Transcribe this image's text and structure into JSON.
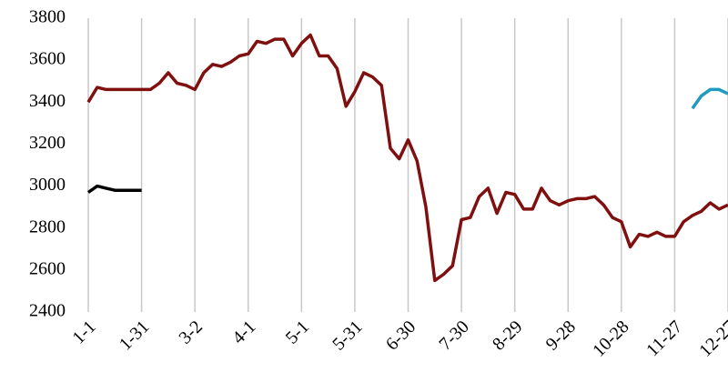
{
  "chart_data": {
    "type": "line",
    "categories": [
      "1-1",
      null,
      null,
      null,
      null,
      null,
      "1-31",
      null,
      null,
      null,
      null,
      null,
      "3-2",
      null,
      null,
      null,
      null,
      null,
      "4-1",
      null,
      null,
      null,
      null,
      null,
      "5-1",
      null,
      null,
      null,
      null,
      null,
      "5-31",
      null,
      null,
      null,
      null,
      null,
      "6-30",
      null,
      null,
      null,
      null,
      null,
      "7-30",
      null,
      null,
      null,
      null,
      null,
      "8-29",
      null,
      null,
      null,
      null,
      null,
      "9-28",
      null,
      null,
      null,
      null,
      null,
      "10-28",
      null,
      null,
      null,
      null,
      null,
      "11-27",
      null,
      null,
      null,
      null,
      null,
      "12-27"
    ],
    "series": [
      {
        "color": "#800f0f",
        "values": [
          3400,
          3470,
          3460,
          3460,
          3460,
          3460,
          3460,
          3460,
          3490,
          3540,
          3490,
          3480,
          3460,
          3540,
          3580,
          3570,
          3590,
          3620,
          3630,
          3690,
          3680,
          3700,
          3700,
          3620,
          3680,
          3720,
          3620,
          3620,
          3560,
          3380,
          3450,
          3540,
          3520,
          3480,
          3180,
          3130,
          3220,
          3120,
          2900,
          2550,
          2580,
          2620,
          2840,
          2850,
          2950,
          2990,
          2870,
          2970,
          2960,
          2890,
          2890,
          2990,
          2930,
          2910,
          2930,
          2940,
          2940,
          2950,
          2910,
          2850,
          2830,
          2710,
          2770,
          2760,
          2780,
          2760,
          2760,
          2830,
          2860,
          2880,
          2920,
          2890,
          2910
        ]
      },
      {
        "color": "#000000",
        "values": [
          2970,
          3000,
          2990,
          2980,
          2980,
          2980,
          2980,
          null,
          null,
          null,
          null,
          null,
          null,
          null,
          null,
          null,
          null,
          null,
          null,
          null,
          null,
          null,
          null,
          null,
          null,
          null,
          null,
          null,
          null,
          null,
          null,
          null,
          null,
          null,
          null,
          null,
          null,
          null,
          null,
          null,
          null,
          null,
          null,
          null,
          null,
          null,
          null,
          null,
          null,
          null,
          null,
          null,
          null,
          null,
          null,
          null,
          null,
          null,
          null,
          null,
          null,
          null,
          null,
          null,
          null,
          null,
          null,
          null,
          null,
          null,
          null,
          null,
          null
        ]
      },
      {
        "color": "#1e9bbd",
        "values": [
          null,
          null,
          null,
          null,
          null,
          null,
          null,
          null,
          null,
          null,
          null,
          null,
          null,
          null,
          null,
          null,
          null,
          null,
          null,
          null,
          null,
          null,
          null,
          null,
          null,
          null,
          null,
          null,
          null,
          null,
          null,
          null,
          null,
          null,
          null,
          null,
          null,
          null,
          null,
          null,
          null,
          null,
          null,
          null,
          null,
          null,
          null,
          null,
          null,
          null,
          null,
          null,
          null,
          null,
          null,
          null,
          null,
          null,
          null,
          null,
          null,
          null,
          null,
          null,
          null,
          null,
          null,
          null,
          3370,
          3430,
          3460,
          3460,
          3440
        ]
      }
    ],
    "ylim": [
      2400,
      3800
    ],
    "yticks": [
      2400,
      2600,
      2800,
      3000,
      3200,
      3400,
      3600,
      3800
    ],
    "grid": true
  }
}
